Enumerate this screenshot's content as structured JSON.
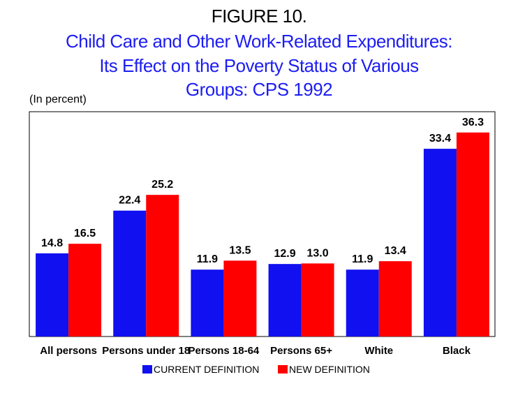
{
  "figure_label": "FIGURE 10.",
  "title_lines": [
    "Child Care and Other Work-Related Expenditures:",
    "Its Effect on the Poverty Status of Various",
    "Groups:  CPS 1992"
  ],
  "unit_label": "(In percent)",
  "colors": {
    "current": "#1010f0",
    "new": "#ff0000",
    "title": "#1d1df2"
  },
  "chart_data": {
    "type": "bar",
    "title": "Child Care and Other Work-Related Expenditures: Its Effect on the Poverty Status of Various Groups:  CPS 1992",
    "ylabel": "(In percent)",
    "xlabel": "",
    "categories": [
      "All persons",
      "Persons under 18",
      "Persons 18-64",
      "Persons 65+",
      "White",
      "Black"
    ],
    "series": [
      {
        "name": "CURRENT DEFINITION",
        "values": [
          14.8,
          22.4,
          11.9,
          12.9,
          11.9,
          33.4
        ]
      },
      {
        "name": "NEW DEFINITION",
        "values": [
          16.5,
          25.2,
          13.5,
          13.0,
          13.4,
          36.3
        ]
      }
    ],
    "ylim": [
      0,
      40
    ],
    "grid": false,
    "legend_position": "bottom"
  }
}
